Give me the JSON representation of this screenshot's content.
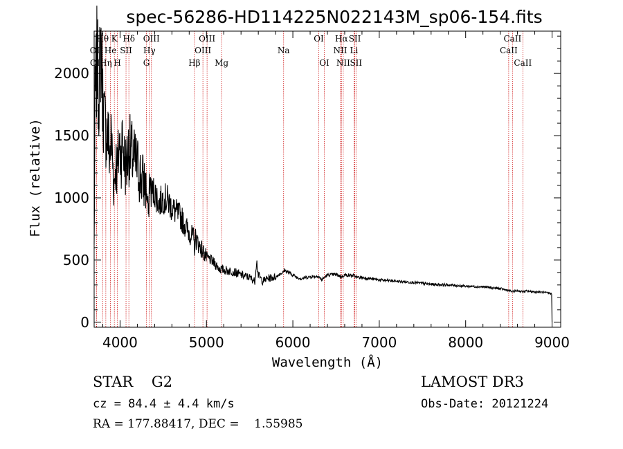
{
  "chart_data": {
    "type": "line",
    "title": "spec-56286-HD114225N022143M_sp06-154.fits",
    "xlabel": "Wavelength (Å)",
    "ylabel": "Flux (relative)",
    "xlim": [
      3700,
      9100
    ],
    "ylim": [
      -40,
      2340
    ],
    "xticks": [
      4000,
      5000,
      6000,
      7000,
      8000,
      9000
    ],
    "yticks": [
      0,
      500,
      1000,
      1500,
      2000
    ],
    "spectrum": {
      "x": [
        3700,
        3710,
        3720,
        3735,
        3750,
        3765,
        3780,
        3800,
        3820,
        3840,
        3860,
        3880,
        3900,
        3930,
        3950,
        3970,
        3990,
        4010,
        4030,
        4050,
        4070,
        4100,
        4130,
        4160,
        4200,
        4250,
        4300,
        4330,
        4340,
        4360,
        4400,
        4450,
        4500,
        4550,
        4600,
        4650,
        4700,
        4750,
        4800,
        4850,
        4861,
        4870,
        4900,
        4950,
        5000,
        5050,
        5100,
        5150,
        5200,
        5300,
        5400,
        5500,
        5560,
        5580,
        5600,
        5650,
        5700,
        5750,
        5800,
        5850,
        5890,
        5900,
        5950,
        6000,
        6050,
        6100,
        6150,
        6200,
        6300,
        6330,
        6400,
        6500,
        6563,
        6600,
        6700,
        6750,
        6800,
        6900,
        7000,
        7200,
        7400,
        7600,
        7800,
        8000,
        8200,
        8400,
        8498,
        8542,
        8600,
        8662,
        8700,
        8800,
        8900,
        8995,
        9000
      ],
      "y": [
        600,
        1700,
        1900,
        2150,
        1850,
        2000,
        2250,
        1800,
        1600,
        1550,
        1500,
        1350,
        1480,
        1100,
        1300,
        1200,
        1450,
        1350,
        1480,
        1300,
        1250,
        1400,
        1350,
        1300,
        1250,
        1150,
        1100,
        850,
        1150,
        1050,
        1050,
        950,
        1000,
        980,
        920,
        880,
        850,
        780,
        720,
        680,
        600,
        680,
        640,
        580,
        520,
        500,
        470,
        430,
        420,
        410,
        380,
        360,
        330,
        500,
        380,
        330,
        350,
        360,
        360,
        390,
        400,
        420,
        400,
        380,
        360,
        350,
        360,
        365,
        370,
        340,
        380,
        385,
        365,
        380,
        375,
        360,
        360,
        350,
        340,
        330,
        320,
        305,
        300,
        290,
        285,
        270,
        255,
        245,
        255,
        245,
        250,
        245,
        240,
        230,
        0
      ]
    },
    "lines_row1": [
      {
        "label": "Hθ",
        "x": 3798
      },
      {
        "label": "K",
        "x": 3934
      },
      {
        "label": "Hδ",
        "x": 4102
      },
      {
        "label": "OIII",
        "x": 4363
      },
      {
        "label": "OIII",
        "x": 5007
      },
      {
        "label": "OI",
        "x": 6300
      },
      {
        "label": "Hα",
        "x": 6563
      },
      {
        "label": "SII",
        "x": 6717
      },
      {
        "label": "CaII",
        "x": 8542
      }
    ],
    "lines_row2": [
      {
        "label": "OII",
        "x": 3727
      },
      {
        "label": "He",
        "x": 3889
      },
      {
        "label": "SII",
        "x": 4069
      },
      {
        "label": "Hγ",
        "x": 4340
      },
      {
        "label": "OIII",
        "x": 4959
      },
      {
        "label": "Na",
        "x": 5893
      },
      {
        "label": "NII",
        "x": 6548
      },
      {
        "label": "Li",
        "x": 6708
      },
      {
        "label": "CaII",
        "x": 8498
      }
    ],
    "lines_row3": [
      {
        "label": "OII",
        "x": 3729
      },
      {
        "label": "Hη",
        "x": 3835
      },
      {
        "label": "H",
        "x": 3969
      },
      {
        "label": "G",
        "x": 4305
      },
      {
        "label": "Hβ",
        "x": 4861
      },
      {
        "label": "Mg",
        "x": 5175
      },
      {
        "label": "OI",
        "x": 6364
      },
      {
        "label": "NII",
        "x": 6583
      },
      {
        "label": "SII",
        "x": 6731
      },
      {
        "label": "CaII",
        "x": 8662
      }
    ],
    "line_color": "#d01c1c",
    "spectrum_color": "#000000"
  },
  "info": {
    "class_line": "STAR    G2",
    "cz_line": "cz = 84.4 ± 4.4 km/s",
    "radec_line": "RA = 177.88417, DEC =    1.55985",
    "survey": "LAMOST DR3",
    "obs_date": "Obs-Date: 20121224"
  }
}
